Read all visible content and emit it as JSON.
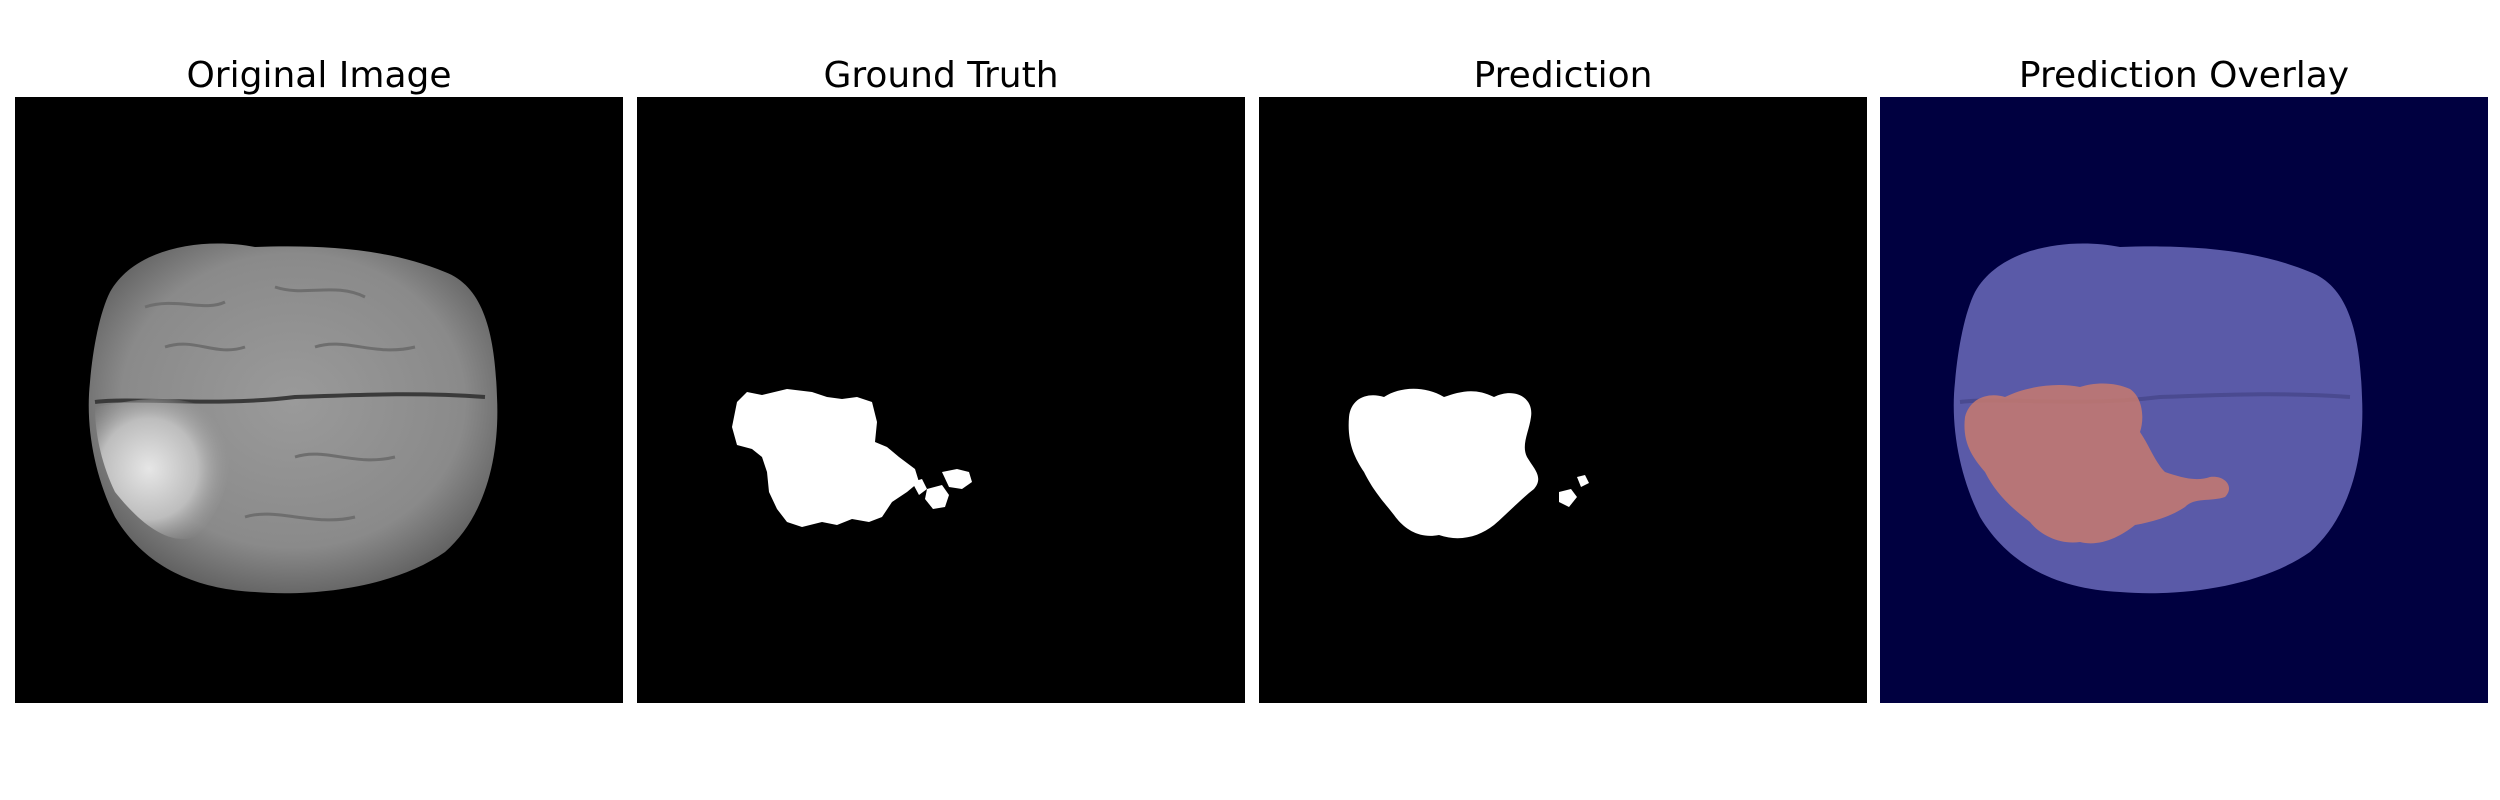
{
  "panels": [
    {
      "title": "Original Image"
    },
    {
      "title": "Ground Truth"
    },
    {
      "title": "Prediction"
    },
    {
      "title": "Prediction Overlay"
    }
  ],
  "colors": {
    "background": "#000000",
    "mask": "#ffffff",
    "overlay_background": "#000040",
    "overlay_brain": "#5a5aa8",
    "overlay_tumor": "#c87a6e"
  }
}
